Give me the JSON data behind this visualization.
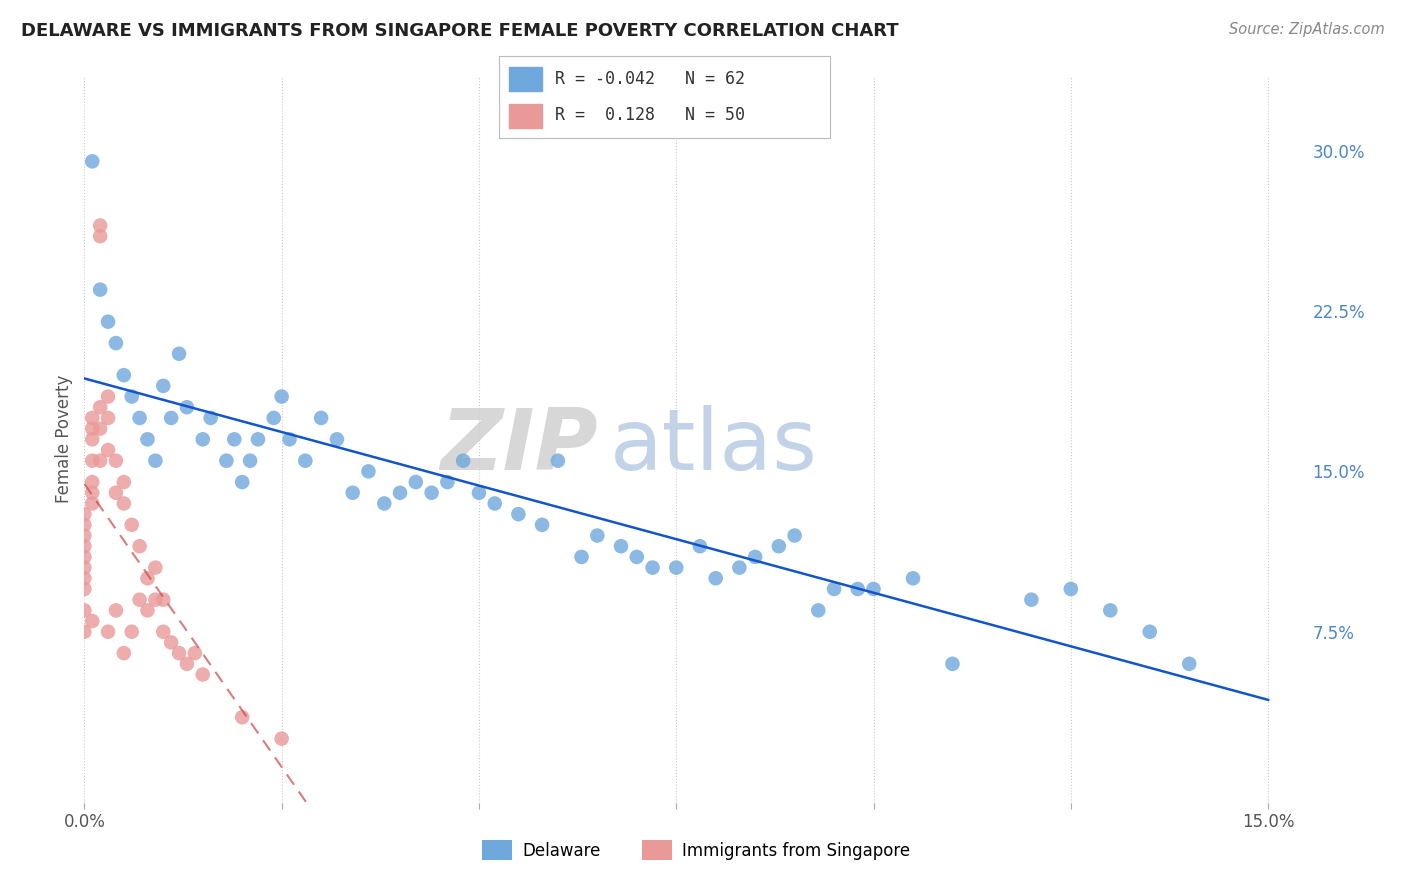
{
  "title": "DELAWARE VS IMMIGRANTS FROM SINGAPORE FEMALE POVERTY CORRELATION CHART",
  "source": "Source: ZipAtlas.com",
  "ylabel": "Female Poverty",
  "xlim": [
    0.0,
    0.155
  ],
  "ylim": [
    -0.005,
    0.335
  ],
  "color_delaware": "#6fa8dc",
  "color_singapore": "#ea9999",
  "trendline_delaware": "#1155cc",
  "trendline_singapore": "#cc4444",
  "background_color": "#ffffff",
  "grid_color": "#cccccc",
  "r_delaware": -0.042,
  "n_delaware": 62,
  "r_singapore": 0.128,
  "n_singapore": 50,
  "watermark_zip": "ZIP",
  "watermark_atlas": "atlas",
  "delaware_x": [
    0.001,
    0.002,
    0.003,
    0.004,
    0.005,
    0.006,
    0.007,
    0.008,
    0.009,
    0.01,
    0.011,
    0.012,
    0.013,
    0.015,
    0.016,
    0.018,
    0.019,
    0.02,
    0.021,
    0.022,
    0.024,
    0.025,
    0.026,
    0.028,
    0.03,
    0.032,
    0.034,
    0.036,
    0.038,
    0.04,
    0.042,
    0.044,
    0.046,
    0.048,
    0.05,
    0.052,
    0.055,
    0.058,
    0.06,
    0.063,
    0.065,
    0.068,
    0.07,
    0.072,
    0.075,
    0.078,
    0.08,
    0.083,
    0.085,
    0.088,
    0.09,
    0.093,
    0.095,
    0.098,
    0.1,
    0.105,
    0.11,
    0.12,
    0.125,
    0.13,
    0.135,
    0.14
  ],
  "delaware_y": [
    0.295,
    0.235,
    0.22,
    0.21,
    0.195,
    0.185,
    0.175,
    0.165,
    0.155,
    0.19,
    0.175,
    0.205,
    0.18,
    0.165,
    0.175,
    0.155,
    0.165,
    0.145,
    0.155,
    0.165,
    0.175,
    0.185,
    0.165,
    0.155,
    0.175,
    0.165,
    0.14,
    0.15,
    0.135,
    0.14,
    0.145,
    0.14,
    0.145,
    0.155,
    0.14,
    0.135,
    0.13,
    0.125,
    0.155,
    0.11,
    0.12,
    0.115,
    0.11,
    0.105,
    0.105,
    0.115,
    0.1,
    0.105,
    0.11,
    0.115,
    0.12,
    0.085,
    0.095,
    0.095,
    0.095,
    0.1,
    0.06,
    0.09,
    0.095,
    0.085,
    0.075,
    0.06
  ],
  "singapore_x": [
    0.0,
    0.0,
    0.0,
    0.0,
    0.0,
    0.0,
    0.0,
    0.0,
    0.0,
    0.0,
    0.001,
    0.001,
    0.001,
    0.001,
    0.001,
    0.001,
    0.001,
    0.001,
    0.002,
    0.002,
    0.002,
    0.002,
    0.002,
    0.003,
    0.003,
    0.003,
    0.003,
    0.004,
    0.004,
    0.004,
    0.005,
    0.005,
    0.005,
    0.006,
    0.006,
    0.007,
    0.007,
    0.008,
    0.008,
    0.009,
    0.009,
    0.01,
    0.01,
    0.011,
    0.012,
    0.013,
    0.014,
    0.015,
    0.02,
    0.025
  ],
  "singapore_y": [
    0.13,
    0.125,
    0.12,
    0.115,
    0.11,
    0.105,
    0.1,
    0.095,
    0.085,
    0.075,
    0.175,
    0.17,
    0.165,
    0.155,
    0.145,
    0.14,
    0.135,
    0.08,
    0.265,
    0.26,
    0.18,
    0.17,
    0.155,
    0.185,
    0.175,
    0.16,
    0.075,
    0.155,
    0.14,
    0.085,
    0.145,
    0.135,
    0.065,
    0.125,
    0.075,
    0.115,
    0.09,
    0.1,
    0.085,
    0.105,
    0.09,
    0.09,
    0.075,
    0.07,
    0.065,
    0.06,
    0.065,
    0.055,
    0.035,
    0.025
  ]
}
